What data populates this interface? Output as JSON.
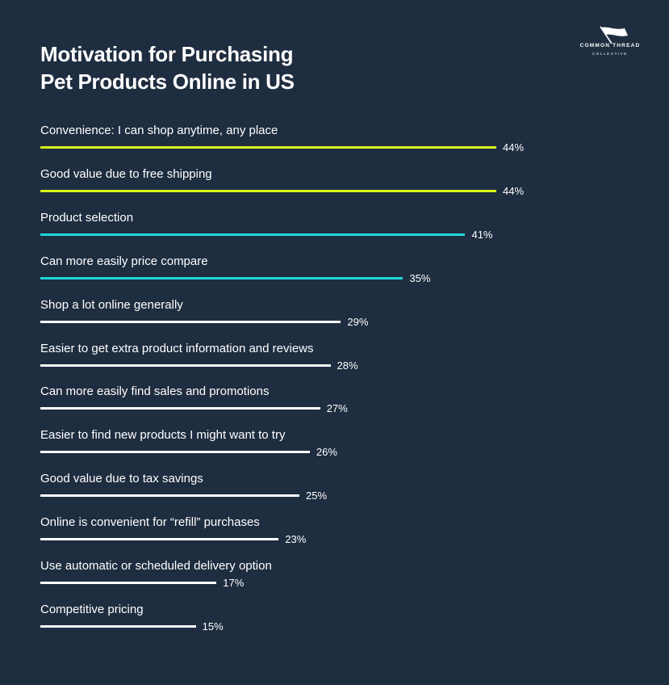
{
  "header": {
    "title_line1": "Motivation for Purchasing",
    "title_line2": "Pet Products Online in US"
  },
  "brand": {
    "name": "COMMON THREAD",
    "sub": "COLLECTIVE"
  },
  "colors": {
    "background": "#1f2d40",
    "lime": "#d6f31c",
    "cyan": "#1fd6dc",
    "white": "#ffffff"
  },
  "chart_data": {
    "type": "bar",
    "orientation": "horizontal",
    "title": "Motivation for Purchasing Pet Products Online in US",
    "xlabel": "",
    "ylabel": "",
    "xlim": [
      0,
      44
    ],
    "grid": false,
    "value_suffix": "%",
    "categories": [
      "Convenience: I can shop anytime, any place",
      "Good value due to free shipping",
      "Product selection",
      "Can more easily price compare",
      "Shop a lot online generally",
      "Easier to get extra product information and reviews",
      "Can more easily find sales and promotions",
      "Easier to find new products I might want to try",
      "Good value due to tax savings",
      "Online is convenient for “refill” purchases",
      "Use automatic or scheduled delivery option",
      "Competitive pricing"
    ],
    "values": [
      44,
      44,
      41,
      35,
      29,
      28,
      27,
      26,
      25,
      23,
      17,
      15
    ],
    "labels": [
      "44%",
      "44%",
      "41%",
      "35%",
      "29%",
      "28%",
      "27%",
      "26%",
      "25%",
      "23%",
      "17%",
      "15%"
    ],
    "bar_colors": [
      "lime",
      "lime",
      "cyan",
      "cyan",
      "white",
      "white",
      "white",
      "white",
      "white",
      "white",
      "white",
      "white"
    ]
  }
}
